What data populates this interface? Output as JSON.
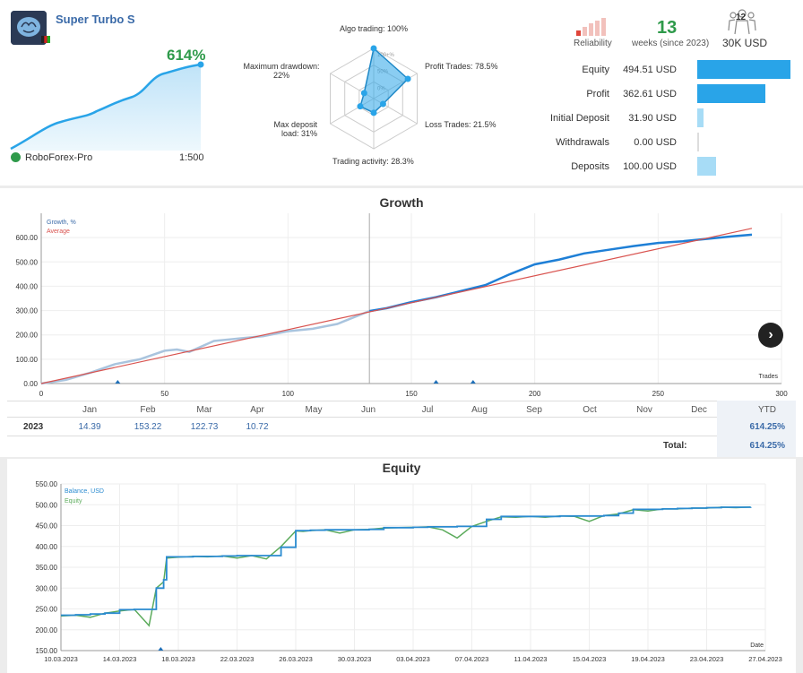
{
  "header": {
    "ea_name": "Super Turbo S",
    "growth_pct": "614%",
    "broker": "RoboForex-Pro",
    "leverage": "1:500",
    "reliability_label": "Reliability",
    "weeks_value": "13",
    "weeks_label": "weeks (since 2023)",
    "subscribers_count": "12",
    "subscribers_label": "30K USD"
  },
  "radar": {
    "axes": [
      {
        "label": "Algo trading: 100%",
        "value": 100
      },
      {
        "label": "Profit Trades: 78.5%",
        "value": 78.5
      },
      {
        "label": "Loss Trades: 21.5%",
        "value": 21.5
      },
      {
        "label": "Trading activity: 28.3%",
        "value": 28.3
      },
      {
        "label": "Max deposit load: 31%",
        "value": 31
      },
      {
        "label": "Maximum drawdown: 22%",
        "value": 22
      }
    ],
    "ring_labels": [
      "100+%",
      "50%",
      "0%"
    ]
  },
  "stats": [
    {
      "label": "Equity",
      "value": "494.51 USD",
      "amount": 494.51
    },
    {
      "label": "Profit",
      "value": "362.61 USD",
      "amount": 362.61
    },
    {
      "label": "Initial Deposit",
      "value": "31.90 USD",
      "amount": 31.9
    },
    {
      "label": "Withdrawals",
      "value": "0.00 USD",
      "amount": 0
    },
    {
      "label": "Deposits",
      "value": "100.00 USD",
      "amount": 100
    }
  ],
  "colors": {
    "accent": "#29a4e8",
    "green": "#2e9a4a",
    "average": "#d9534f",
    "equity_green": "#5cab5c"
  },
  "chart_data": [
    {
      "type": "line",
      "title": "Growth",
      "xlabel": "Trades",
      "ylabel": "",
      "xlim": [
        0,
        300
      ],
      "ylim": [
        0,
        700
      ],
      "x_ticks": [
        0,
        50,
        100,
        150,
        200,
        250,
        300
      ],
      "y_ticks": [
        "0.00",
        "100.00",
        "200.00",
        "300.00",
        "400.00",
        "500.00",
        "600.00"
      ],
      "legend": [
        "Growth, %",
        "Average"
      ],
      "legend_position": "top-left",
      "series": [
        {
          "name": "Growth, %",
          "x": [
            0,
            10,
            20,
            30,
            40,
            50,
            55,
            60,
            70,
            80,
            90,
            100,
            110,
            120,
            133,
            140,
            150,
            160,
            170,
            180,
            190,
            200,
            210,
            220,
            230,
            240,
            250,
            260,
            270,
            280,
            288
          ],
          "values": [
            0,
            15,
            45,
            80,
            100,
            135,
            140,
            130,
            175,
            185,
            195,
            215,
            225,
            245,
            298,
            310,
            335,
            355,
            380,
            405,
            450,
            490,
            510,
            535,
            550,
            565,
            578,
            585,
            595,
            605,
            612
          ]
        },
        {
          "name": "Average",
          "x": [
            0,
            288
          ],
          "values": [
            0,
            638
          ]
        }
      ],
      "month_table": {
        "months": [
          "Jan",
          "Feb",
          "Mar",
          "Apr",
          "May",
          "Jun",
          "Jul",
          "Aug",
          "Sep",
          "Oct",
          "Nov",
          "Dec",
          "YTD"
        ],
        "year": "2023",
        "values": [
          "14.39",
          "153.22",
          "122.73",
          "10.72",
          "",
          "",
          "",
          "",
          "",
          "",
          "",
          "",
          "614.25%"
        ],
        "total_label": "Total:",
        "total_value": "614.25%"
      }
    },
    {
      "type": "line",
      "title": "Equity",
      "xlabel": "Date",
      "ylabel": "",
      "x_ticks": [
        "10.03.2023",
        "14.03.2023",
        "18.03.2023",
        "22.03.2023",
        "26.03.2023",
        "30.03.2023",
        "03.04.2023",
        "07.04.2023",
        "11.04.2023",
        "15.04.2023",
        "19.04.2023",
        "23.04.2023",
        "27.04.2023"
      ],
      "xlim_days": [
        0,
        48
      ],
      "ylim": [
        150,
        550
      ],
      "y_ticks": [
        "150.00",
        "200.00",
        "250.00",
        "300.00",
        "350.00",
        "400.00",
        "450.00",
        "500.00",
        "550.00"
      ],
      "legend": [
        "Balance, USD",
        "Equity"
      ],
      "legend_position": "top-left",
      "series": [
        {
          "name": "Balance, USD",
          "x": [
            0,
            1,
            2,
            3,
            4,
            5,
            6,
            6.5,
            7,
            7.2,
            8,
            9,
            10,
            11,
            12,
            13,
            14,
            15,
            16,
            16.5,
            17,
            18,
            19,
            20,
            21,
            22,
            23,
            24,
            25,
            26,
            27,
            28,
            29,
            30,
            31,
            32,
            33,
            34,
            35,
            36,
            37,
            38,
            39,
            40,
            41,
            42,
            43,
            44,
            45,
            46,
            47
          ],
          "values": [
            235,
            236,
            238,
            240,
            248,
            249,
            249,
            300,
            320,
            375,
            375,
            376,
            376,
            377,
            378,
            378,
            378,
            398,
            438,
            438,
            439,
            440,
            440,
            440,
            441,
            445,
            445,
            446,
            447,
            447,
            448,
            448,
            465,
            472,
            472,
            472,
            472,
            473,
            473,
            473,
            474,
            480,
            489,
            489,
            490,
            491,
            492,
            493,
            494,
            494,
            494.5
          ]
        },
        {
          "name": "Equity",
          "x": [
            0,
            1,
            2,
            3,
            4,
            5,
            6,
            6.5,
            7,
            7.2,
            8,
            9,
            10,
            11,
            12,
            13,
            14,
            15,
            16,
            16.5,
            17,
            18,
            19,
            20,
            21,
            22,
            23,
            24,
            25,
            26,
            27,
            28,
            29,
            30,
            31,
            32,
            33,
            34,
            35,
            36,
            37,
            38,
            39,
            40,
            41,
            42,
            43,
            44,
            45,
            46,
            47
          ],
          "values": [
            233,
            235,
            230,
            240,
            245,
            249,
            210,
            300,
            315,
            372,
            374,
            376,
            375,
            377,
            372,
            378,
            370,
            400,
            437,
            436,
            438,
            440,
            432,
            440,
            441,
            444,
            445,
            446,
            447,
            440,
            420,
            448,
            460,
            471,
            470,
            472,
            470,
            473,
            472,
            460,
            474,
            478,
            488,
            485,
            490,
            490,
            492,
            492,
            494,
            493,
            494.5
          ]
        }
      ]
    }
  ]
}
